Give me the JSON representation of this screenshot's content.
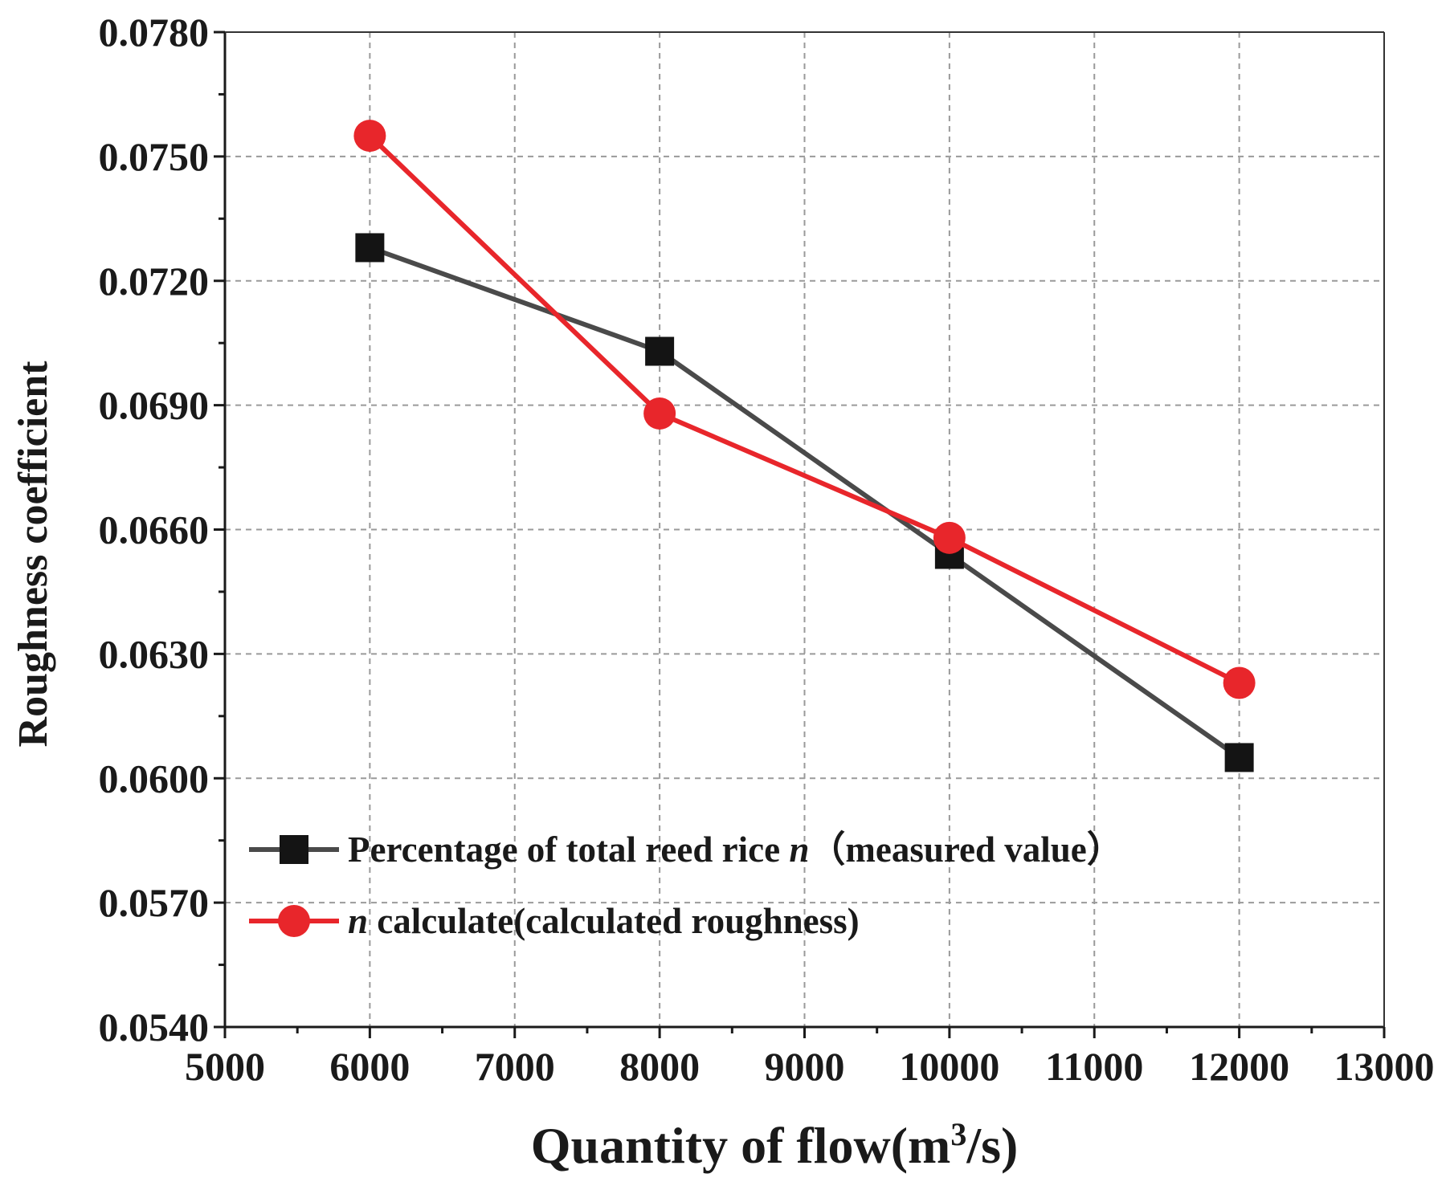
{
  "chart_data": {
    "type": "line",
    "title": "",
    "xlabel": "Quantity of flow(m",
    "xlabel_superscript": "3",
    "xlabel_suffix": "/s)",
    "ylabel": "Roughness coefficient",
    "xlim": [
      5000,
      13000
    ],
    "ylim": [
      0.054,
      0.078
    ],
    "grid": true,
    "x_ticks": [
      "5000",
      "6000",
      "7000",
      "8000",
      "9000",
      "10000",
      "11000",
      "12000",
      "13000"
    ],
    "x_tick_values": [
      5000,
      6000,
      7000,
      8000,
      9000,
      10000,
      11000,
      12000,
      13000
    ],
    "y_ticks": [
      "0.0540",
      "0.0570",
      "0.0600",
      "0.0630",
      "0.0660",
      "0.0690",
      "0.0720",
      "0.0750",
      "0.0780"
    ],
    "y_tick_values": [
      0.054,
      0.057,
      0.06,
      0.063,
      0.066,
      0.069,
      0.072,
      0.075,
      0.078
    ],
    "x": [
      6000,
      8000,
      10000,
      12000
    ],
    "legend_position": "bottom-left",
    "series": [
      {
        "name": "Percentage of total reed rice",
        "name_italic": "n",
        "name_suffix": "（measured value）",
        "values": [
          0.0728,
          0.0703,
          0.0654,
          0.0605
        ],
        "color": "#4a4a4a",
        "marker_color": "#141414",
        "marker": "square"
      },
      {
        "name_italic": "n",
        "name": " calculate(calculated roughness)",
        "values": [
          0.0755,
          0.0688,
          0.0658,
          0.0623
        ],
        "color": "#e8262b",
        "marker_color": "#e8262b",
        "marker": "circle"
      }
    ]
  }
}
